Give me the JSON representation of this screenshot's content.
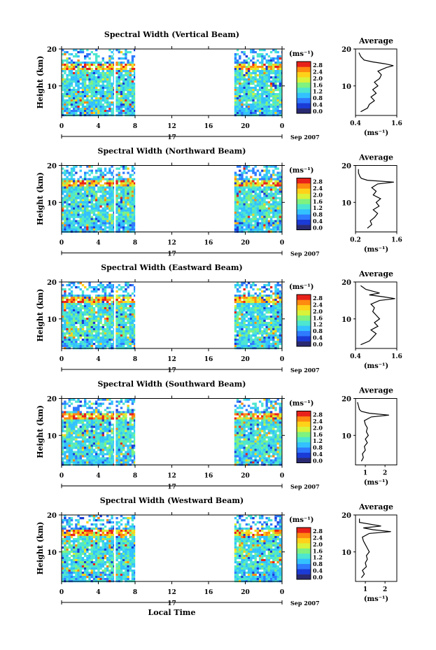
{
  "figure": {
    "date_label": "Sep 2007",
    "day_label": "17",
    "xlabel": "Local Time",
    "colorbar_unit": "(ms⁻¹)",
    "colorbar_ticks": [
      "2.8",
      "2.4",
      "2.0",
      "1.6",
      "1.2",
      "0.8",
      "0.4",
      "0.0"
    ],
    "colorbar_colors": [
      "#2a2a72",
      "#1b3bd6",
      "#2f7bff",
      "#33c2ff",
      "#4de6d0",
      "#7ff27f",
      "#d9f23a",
      "#ffd21a",
      "#ff8a10",
      "#e8221a"
    ],
    "average_title": "Average",
    "average_unit": "(ms⁻¹)",
    "time_ticks": [
      "0",
      "4",
      "8",
      "12",
      "16",
      "20",
      "0"
    ],
    "height_ticks": [
      "20",
      "10"
    ],
    "height_axis_label": "Height (km)"
  },
  "chart_data": [
    {
      "type": "heatmap",
      "title": "Spectral Width (Vertical Beam)",
      "ylabel": "Height (km)",
      "xlabel": "Local Time",
      "xlim": [
        0,
        24
      ],
      "ylim": [
        2,
        20
      ],
      "data_segments_hours": [
        [
          0,
          5.7
        ],
        [
          5.9,
          8
        ],
        [
          18.8,
          24
        ]
      ],
      "average_profile": {
        "xlabel": "(ms⁻¹)",
        "xticks": [
          "0.4",
          "1.6"
        ],
        "xlim": [
          0.4,
          1.6
        ],
        "heights": [
          3,
          4,
          5,
          6,
          7,
          8,
          9,
          10,
          11,
          12,
          13,
          14,
          15,
          15.5,
          16,
          16.5,
          17,
          18,
          19
        ],
        "values": [
          0.55,
          0.75,
          0.8,
          0.95,
          0.85,
          1.0,
          0.9,
          1.05,
          0.95,
          1.1,
          1.15,
          1.05,
          1.3,
          1.5,
          1.25,
          0.9,
          0.65,
          0.55,
          0.5
        ]
      }
    },
    {
      "type": "heatmap",
      "title": "Spectral Width (Northward Beam)",
      "ylabel": "Height (km)",
      "xlabel": "Local Time",
      "xlim": [
        0,
        24
      ],
      "ylim": [
        2,
        20
      ],
      "data_segments_hours": [
        [
          0,
          5.7
        ],
        [
          5.9,
          8
        ],
        [
          18.8,
          24
        ]
      ],
      "average_profile": {
        "xlabel": "(ms⁻¹)",
        "xticks": [
          "0.2",
          "1.6"
        ],
        "xlim": [
          0.2,
          1.6
        ],
        "heights": [
          3,
          4,
          5,
          6,
          7,
          8,
          9,
          10,
          11,
          12,
          13,
          14,
          15,
          15.5,
          16,
          16.5,
          17,
          18,
          19
        ],
        "values": [
          0.6,
          0.75,
          0.7,
          0.85,
          0.95,
          0.8,
          1.0,
          0.9,
          1.05,
          0.8,
          0.9,
          0.75,
          0.95,
          1.5,
          0.6,
          0.4,
          0.35,
          0.3,
          0.3
        ]
      }
    },
    {
      "type": "heatmap",
      "title": "Spectral Width (Eastward Beam)",
      "ylabel": "Height (km)",
      "xlabel": "Local Time",
      "xlim": [
        0,
        24
      ],
      "ylim": [
        2,
        20
      ],
      "data_segments_hours": [
        [
          0,
          5.7
        ],
        [
          5.9,
          8
        ],
        [
          18.8,
          24
        ]
      ],
      "average_profile": {
        "xlabel": "(ms⁻¹)",
        "xticks": [
          "0.4",
          "1.6"
        ],
        "xlim": [
          0.4,
          1.6
        ],
        "heights": [
          3,
          4,
          5,
          6,
          7,
          8,
          9,
          10,
          11,
          12,
          13,
          14,
          15,
          15.5,
          16,
          16.5,
          17,
          18,
          19
        ],
        "values": [
          0.55,
          0.8,
          0.9,
          1.0,
          0.85,
          1.05,
          0.95,
          1.1,
          1.0,
          0.9,
          0.95,
          0.85,
          1.1,
          1.55,
          1.2,
          0.8,
          1.1,
          0.7,
          0.55
        ]
      }
    },
    {
      "type": "heatmap",
      "title": "Spectral Width (Southward Beam)",
      "ylabel": "Height (km)",
      "xlabel": "Local Time",
      "xlim": [
        0,
        24
      ],
      "ylim": [
        2,
        20
      ],
      "data_segments_hours": [
        [
          0,
          5.7
        ],
        [
          5.9,
          8
        ],
        [
          18.8,
          24
        ]
      ],
      "average_profile": {
        "xlabel": "(ms⁻¹)",
        "xticks": [
          "1",
          "2"
        ],
        "xlim": [
          0.5,
          2.6
        ],
        "heights": [
          3,
          4,
          5,
          6,
          7,
          8,
          9,
          10,
          11,
          12,
          13,
          14,
          15,
          15.5,
          16,
          16.5,
          17,
          18,
          19
        ],
        "values": [
          0.8,
          0.9,
          0.85,
          1.0,
          0.95,
          1.1,
          1.0,
          1.15,
          1.05,
          1.1,
          1.0,
          0.95,
          1.3,
          2.2,
          1.2,
          0.8,
          0.7,
          0.65,
          0.6
        ]
      }
    },
    {
      "type": "heatmap",
      "title": "Spectral Width (Westward Beam)",
      "ylabel": "Height (km)",
      "xlabel": "Local Time",
      "xlim": [
        0,
        24
      ],
      "ylim": [
        2,
        20
      ],
      "data_segments_hours": [
        [
          0,
          5.7
        ],
        [
          5.9,
          8
        ],
        [
          18.8,
          24
        ]
      ],
      "average_profile": {
        "xlabel": "(ms⁻¹)",
        "xticks": [
          "1",
          "2"
        ],
        "xlim": [
          0.5,
          2.6
        ],
        "heights": [
          3,
          4,
          5,
          6,
          7,
          8,
          9,
          10,
          11,
          12,
          13,
          14,
          15,
          15.5,
          16,
          16.5,
          17,
          18,
          19
        ],
        "values": [
          0.8,
          0.95,
          0.85,
          1.05,
          1.0,
          1.1,
          1.05,
          1.2,
          1.1,
          1.0,
          0.9,
          0.85,
          1.2,
          2.3,
          1.4,
          0.9,
          1.8,
          0.7,
          0.7
        ]
      }
    }
  ]
}
